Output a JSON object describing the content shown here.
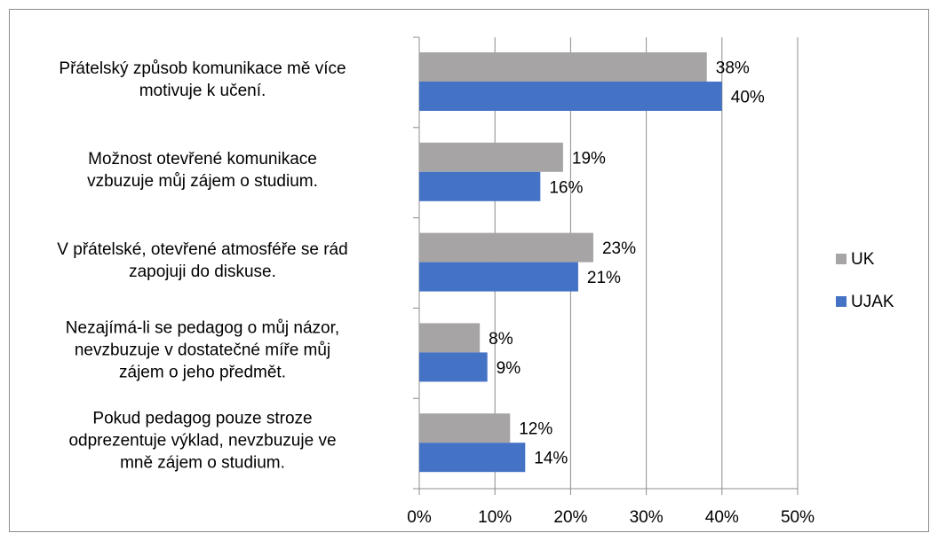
{
  "chart_data": {
    "type": "bar",
    "orientation": "horizontal",
    "categories": [
      "Přátelský způsob komunikace mě více\nmotivuje k učení.",
      "Možnost otevřené komunikace\nvzbuzuje můj zájem o studium.",
      "V přátelské, otevřené atmosféře se rád\nzapojuji do diskuse.",
      "Nezajímá-li se pedagog o můj názor,\nnevzbuzuje v dostatečné míře můj\nzájem o jeho předmět.",
      "Pokud pedagog pouze stroze\nodprezentuje výklad, nevzbuzuje ve\nmně zájem o studium."
    ],
    "series": [
      {
        "name": "UK",
        "color": "#a6a4a4",
        "values": [
          38,
          19,
          23,
          8,
          12
        ],
        "value_labels": [
          "38%",
          "19%",
          "23%",
          "8%",
          "12%"
        ]
      },
      {
        "name": "UJAK",
        "color": "#4472c4",
        "values": [
          40,
          16,
          21,
          9,
          14
        ],
        "value_labels": [
          "40%",
          "16%",
          "21%",
          "9%",
          "14%"
        ]
      }
    ],
    "xlim": [
      0,
      50
    ],
    "xticks": [
      {
        "value": 0,
        "label": "0%"
      },
      {
        "value": 10,
        "label": "10%"
      },
      {
        "value": 20,
        "label": "20%"
      },
      {
        "value": 30,
        "label": "30%"
      },
      {
        "value": 40,
        "label": "40%"
      },
      {
        "value": 50,
        "label": "50%"
      }
    ],
    "grid": true,
    "legend": "right"
  }
}
